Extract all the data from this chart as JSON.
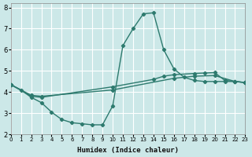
{
  "xlabel": "Humidex (Indice chaleur)",
  "bg_color": "#cce8e8",
  "grid_color": "#ffffff",
  "line_color": "#2d7a6e",
  "xlim": [
    0,
    23
  ],
  "ylim": [
    2,
    8.2
  ],
  "yticks": [
    2,
    3,
    4,
    5,
    6,
    7,
    8
  ],
  "xticks": [
    0,
    1,
    2,
    3,
    4,
    5,
    6,
    7,
    8,
    9,
    10,
    11,
    12,
    13,
    14,
    15,
    16,
    17,
    18,
    19,
    20,
    21,
    22,
    23
  ],
  "line1_x": [
    0,
    1,
    2,
    3,
    4,
    5,
    6,
    7,
    8,
    9,
    10,
    11,
    12,
    13,
    14,
    15,
    16,
    17,
    18,
    19,
    20,
    21,
    22,
    23
  ],
  "line1_y": [
    4.35,
    4.1,
    3.75,
    3.5,
    3.05,
    2.7,
    2.55,
    2.5,
    2.45,
    2.45,
    3.35,
    6.2,
    7.0,
    7.7,
    7.75,
    6.0,
    5.1,
    4.7,
    4.55,
    4.5,
    4.5,
    4.5,
    4.5,
    4.45
  ],
  "line2_x": [
    0,
    2,
    3,
    10,
    14,
    15,
    16,
    18,
    19,
    20,
    21,
    22,
    23
  ],
  "line2_y": [
    4.35,
    3.8,
    3.75,
    4.25,
    4.6,
    4.75,
    4.82,
    4.88,
    4.9,
    4.92,
    4.55,
    4.5,
    4.45
  ],
  "line3_x": [
    0,
    2,
    3,
    10,
    16,
    18,
    20,
    22,
    23
  ],
  "line3_y": [
    4.35,
    3.85,
    3.8,
    4.1,
    4.65,
    4.75,
    4.78,
    4.5,
    4.45
  ]
}
